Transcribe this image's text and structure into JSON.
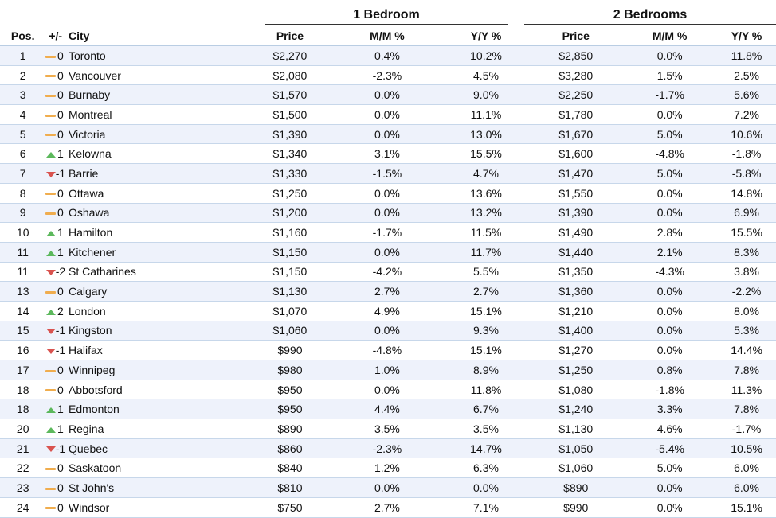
{
  "groups": {
    "one_bedroom": "1 Bedroom",
    "two_bedrooms": "2 Bedrooms"
  },
  "columns": {
    "pos": "Pos.",
    "change": "+/-",
    "city": "City",
    "price": "Price",
    "mm": "M/M %",
    "yy": "Y/Y %"
  },
  "trend_colors": {
    "up": "#5cb85c",
    "down": "#d9534f",
    "flat": "#f0ad4e"
  },
  "rows": [
    {
      "pos": "1",
      "trend": "flat",
      "change": "0",
      "city": "Toronto",
      "p1": "$2,270",
      "m1": "0.4%",
      "y1": "10.2%",
      "p2": "$2,850",
      "m2": "0.0%",
      "y2": "11.8%"
    },
    {
      "pos": "2",
      "trend": "flat",
      "change": "0",
      "city": "Vancouver",
      "p1": "$2,080",
      "m1": "-2.3%",
      "y1": "4.5%",
      "p2": "$3,280",
      "m2": "1.5%",
      "y2": "2.5%"
    },
    {
      "pos": "3",
      "trend": "flat",
      "change": "0",
      "city": "Burnaby",
      "p1": "$1,570",
      "m1": "0.0%",
      "y1": "9.0%",
      "p2": "$2,250",
      "m2": "-1.7%",
      "y2": "5.6%"
    },
    {
      "pos": "4",
      "trend": "flat",
      "change": "0",
      "city": "Montreal",
      "p1": "$1,500",
      "m1": "0.0%",
      "y1": "11.1%",
      "p2": "$1,780",
      "m2": "0.0%",
      "y2": "7.2%"
    },
    {
      "pos": "5",
      "trend": "flat",
      "change": "0",
      "city": "Victoria",
      "p1": "$1,390",
      "m1": "0.0%",
      "y1": "13.0%",
      "p2": "$1,670",
      "m2": "5.0%",
      "y2": "10.6%"
    },
    {
      "pos": "6",
      "trend": "up",
      "change": "1",
      "city": "Kelowna",
      "p1": "$1,340",
      "m1": "3.1%",
      "y1": "15.5%",
      "p2": "$1,600",
      "m2": "-4.8%",
      "y2": "-1.8%"
    },
    {
      "pos": "7",
      "trend": "down",
      "change": "-1",
      "city": "Barrie",
      "p1": "$1,330",
      "m1": "-1.5%",
      "y1": "4.7%",
      "p2": "$1,470",
      "m2": "5.0%",
      "y2": "-5.8%"
    },
    {
      "pos": "8",
      "trend": "flat",
      "change": "0",
      "city": "Ottawa",
      "p1": "$1,250",
      "m1": "0.0%",
      "y1": "13.6%",
      "p2": "$1,550",
      "m2": "0.0%",
      "y2": "14.8%"
    },
    {
      "pos": "9",
      "trend": "flat",
      "change": "0",
      "city": "Oshawa",
      "p1": "$1,200",
      "m1": "0.0%",
      "y1": "13.2%",
      "p2": "$1,390",
      "m2": "0.0%",
      "y2": "6.9%"
    },
    {
      "pos": "10",
      "trend": "up",
      "change": "1",
      "city": "Hamilton",
      "p1": "$1,160",
      "m1": "-1.7%",
      "y1": "11.5%",
      "p2": "$1,490",
      "m2": "2.8%",
      "y2": "15.5%"
    },
    {
      "pos": "11",
      "trend": "up",
      "change": "1",
      "city": "Kitchener",
      "p1": "$1,150",
      "m1": "0.0%",
      "y1": "11.7%",
      "p2": "$1,440",
      "m2": "2.1%",
      "y2": "8.3%"
    },
    {
      "pos": "11",
      "trend": "down",
      "change": "-2",
      "city": "St Catharines",
      "p1": "$1,150",
      "m1": "-4.2%",
      "y1": "5.5%",
      "p2": "$1,350",
      "m2": "-4.3%",
      "y2": "3.8%"
    },
    {
      "pos": "13",
      "trend": "flat",
      "change": "0",
      "city": "Calgary",
      "p1": "$1,130",
      "m1": "2.7%",
      "y1": "2.7%",
      "p2": "$1,360",
      "m2": "0.0%",
      "y2": "-2.2%"
    },
    {
      "pos": "14",
      "trend": "up",
      "change": "2",
      "city": "London",
      "p1": "$1,070",
      "m1": "4.9%",
      "y1": "15.1%",
      "p2": "$1,210",
      "m2": "0.0%",
      "y2": "8.0%"
    },
    {
      "pos": "15",
      "trend": "down",
      "change": "-1",
      "city": "Kingston",
      "p1": "$1,060",
      "m1": "0.0%",
      "y1": "9.3%",
      "p2": "$1,400",
      "m2": "0.0%",
      "y2": "5.3%"
    },
    {
      "pos": "16",
      "trend": "down",
      "change": "-1",
      "city": "Halifax",
      "p1": "$990",
      "m1": "-4.8%",
      "y1": "15.1%",
      "p2": "$1,270",
      "m2": "0.0%",
      "y2": "14.4%"
    },
    {
      "pos": "17",
      "trend": "flat",
      "change": "0",
      "city": "Winnipeg",
      "p1": "$980",
      "m1": "1.0%",
      "y1": "8.9%",
      "p2": "$1,250",
      "m2": "0.8%",
      "y2": "7.8%"
    },
    {
      "pos": "18",
      "trend": "flat",
      "change": "0",
      "city": "Abbotsford",
      "p1": "$950",
      "m1": "0.0%",
      "y1": "11.8%",
      "p2": "$1,080",
      "m2": "-1.8%",
      "y2": "11.3%"
    },
    {
      "pos": "18",
      "trend": "up",
      "change": "1",
      "city": "Edmonton",
      "p1": "$950",
      "m1": "4.4%",
      "y1": "6.7%",
      "p2": "$1,240",
      "m2": "3.3%",
      "y2": "7.8%"
    },
    {
      "pos": "20",
      "trend": "up",
      "change": "1",
      "city": "Regina",
      "p1": "$890",
      "m1": "3.5%",
      "y1": "3.5%",
      "p2": "$1,130",
      "m2": "4.6%",
      "y2": "-1.7%"
    },
    {
      "pos": "21",
      "trend": "down",
      "change": "-1",
      "city": "Quebec",
      "p1": "$860",
      "m1": "-2.3%",
      "y1": "14.7%",
      "p2": "$1,050",
      "m2": "-5.4%",
      "y2": "10.5%"
    },
    {
      "pos": "22",
      "trend": "flat",
      "change": "0",
      "city": "Saskatoon",
      "p1": "$840",
      "m1": "1.2%",
      "y1": "6.3%",
      "p2": "$1,060",
      "m2": "5.0%",
      "y2": "6.0%"
    },
    {
      "pos": "23",
      "trend": "flat",
      "change": "0",
      "city": "St John's",
      "p1": "$810",
      "m1": "0.0%",
      "y1": "0.0%",
      "p2": "$890",
      "m2": "0.0%",
      "y2": "6.0%"
    },
    {
      "pos": "24",
      "trend": "flat",
      "change": "0",
      "city": "Windsor",
      "p1": "$750",
      "m1": "2.7%",
      "y1": "7.1%",
      "p2": "$990",
      "m2": "0.0%",
      "y2": "15.1%"
    }
  ]
}
